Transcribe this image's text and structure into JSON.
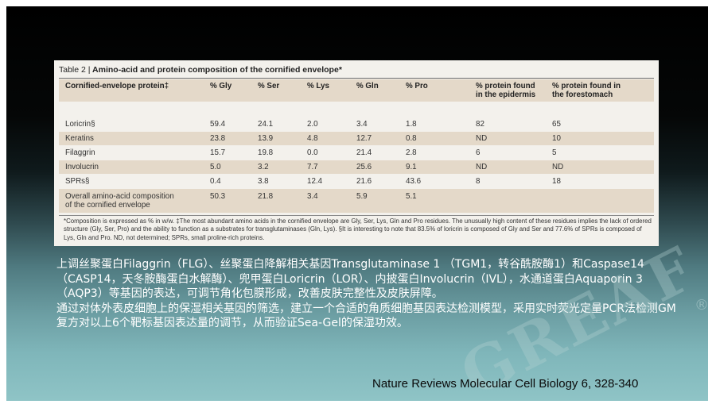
{
  "table": {
    "title_num": "Table 2 |",
    "title_main": " Amino-acid and protein composition of the cornified envelope*",
    "headers": [
      "Cornified-envelope protein‡",
      "% Gly",
      "% Ser",
      "% Lys",
      "% Gln",
      "% Pro",
      "% protein found\nin the epidermis",
      "% protein found in\nthe forestomach"
    ],
    "rows": [
      [
        "Loricrin§",
        "59.4",
        "24.1",
        "2.0",
        "3.4",
        "1.8",
        "82",
        "65"
      ],
      [
        "Keratins",
        "23.8",
        "13.9",
        "4.8",
        "12.7",
        "0.8",
        "ND",
        "10"
      ],
      [
        "Filaggrin",
        "15.7",
        "19.8",
        "0.0",
        "21.4",
        "2.8",
        "6",
        "5"
      ],
      [
        "Involucrin",
        "5.0",
        "3.2",
        "7.7",
        "25.6",
        "9.1",
        "ND",
        "ND"
      ],
      [
        "SPRs§",
        "0.4",
        "3.8",
        "12.4",
        "21.6",
        "43.6",
        "8",
        "18"
      ],
      [
        "Overall amino-acid composition\nof the cornified envelope",
        "50.3",
        "21.8",
        "3.4",
        "5.9",
        "5.1",
        "",
        ""
      ]
    ],
    "footnote": "*Composition is expressed as % in w/w. ‡The most abundant amino acids in the cornified envelope are Gly, Ser, Lys, Gln and Pro residues. The unusually high content of these residues implies the lack of ordered structure (Gly, Ser, Pro) and the ability to function as a substrates for transglutaminases (Gln, Lys). §It is interesting to note that 83.5% of loricrin is composed of Gly and Ser and 77.6% of SPRs is composed of Lys, Gln and Pro. ND, not determined; SPRs, small proline-rich proteins."
  },
  "paragraphs": [
    "上调丝聚蛋白Filaggrin（FLG）、丝聚蛋白降解相关基因Transglutaminase 1 （TGM1，转谷酰胺酶1）和Caspase14（CASP14，天冬胺酶蛋白水解酶）、兜甲蛋白Loricrin（LOR）、内披蛋白Involucrin（IVL），水通道蛋白Aquaporin 3（AQP3）等基因的表达，可调节角化包膜形成，改善皮肤完整性及皮肤屏障。",
    "通过对体外表皮细胞上的保湿相关基因的筛选，建立一个合适的角质细胞基因表达检测模型，采用实时荧光定量PCR法检测GM复方对以上6个靶标基因表达量的调节，从而验证Sea-Gel的保湿功效。"
  ],
  "citation": "Nature Reviews Molecular Cell Biology 6, 328-340",
  "watermark": "GREAF",
  "watermark_mark": "®",
  "colors": {
    "band": "#e4d9c9",
    "text_white": "#ffffff"
  }
}
